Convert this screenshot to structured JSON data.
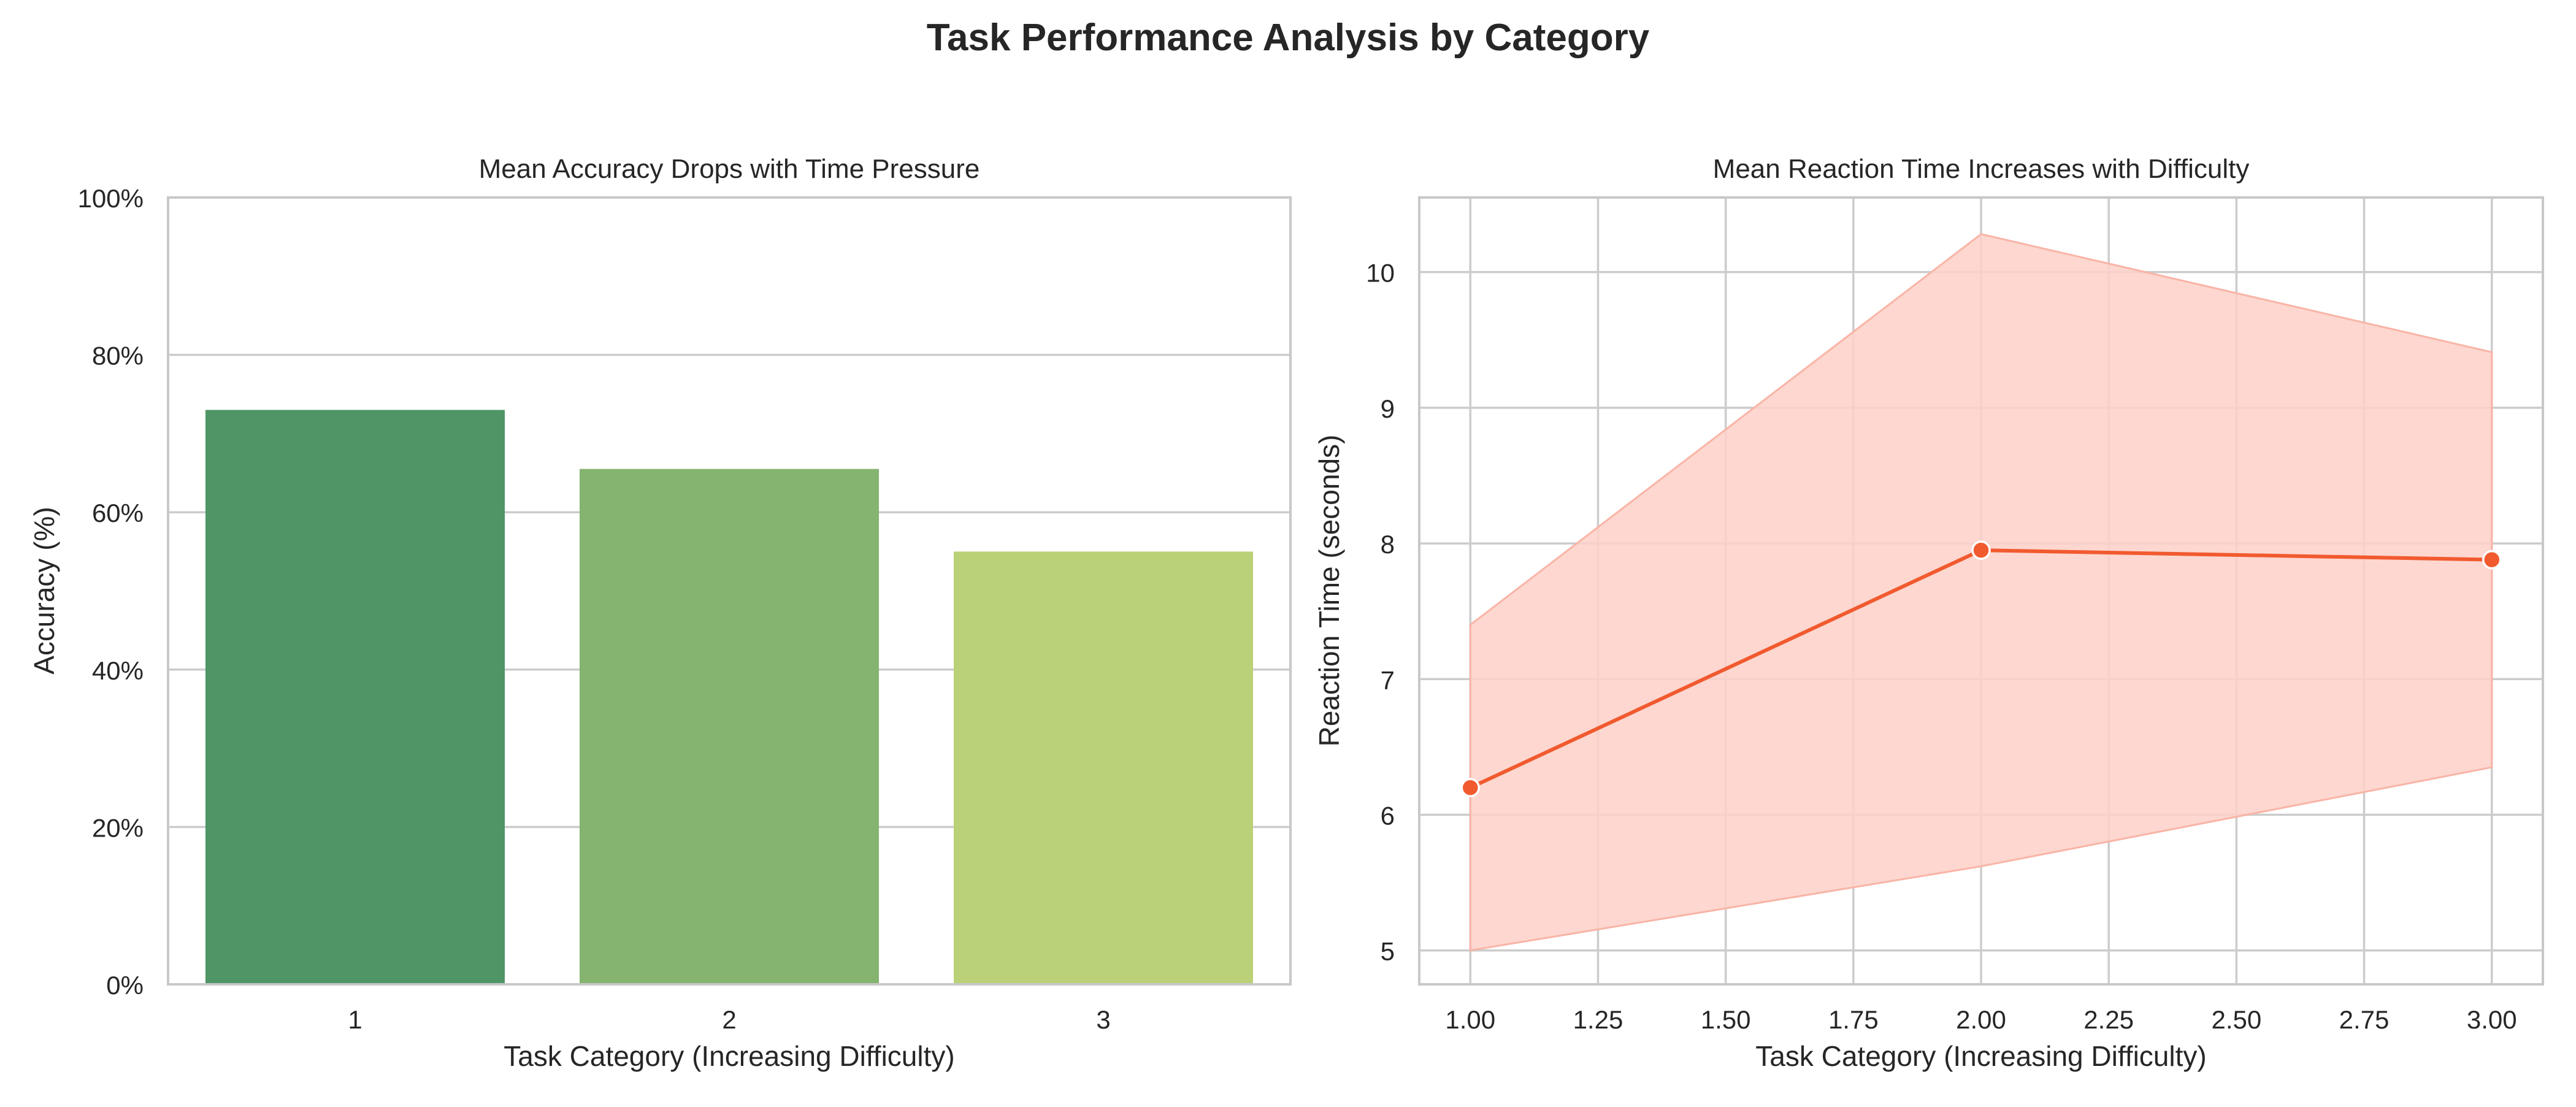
{
  "figure": {
    "title": "Task Performance Analysis by Category"
  },
  "colors": {
    "text": "#262626",
    "grid": "#cccccc",
    "frame": "#c8c8c8",
    "bars": [
      "#4f9566",
      "#84b46f",
      "#bad177"
    ],
    "line": "#f15a2f",
    "band": "#fdd0c8"
  },
  "chart_data": [
    {
      "type": "bar",
      "title": "Mean Accuracy Drops with Time Pressure",
      "xlabel": "Task Category (Increasing Difficulty)",
      "ylabel": "Accuracy (%)",
      "categories": [
        "1",
        "2",
        "3"
      ],
      "values": [
        73,
        65.5,
        55
      ],
      "ylim": [
        0,
        100
      ],
      "yticks": [
        0,
        20,
        40,
        60,
        80,
        100
      ],
      "ytick_labels": [
        "0%",
        "20%",
        "40%",
        "60%",
        "80%",
        "100%"
      ],
      "grid": "horizontal"
    },
    {
      "type": "line",
      "title": "Mean Reaction Time Increases with Difficulty",
      "xlabel": "Task Category (Increasing Difficulty)",
      "ylabel": "Reaction Time (seconds)",
      "x": [
        1.0,
        2.0,
        3.0
      ],
      "y": [
        6.2,
        7.95,
        7.88
      ],
      "band_lower": [
        5.0,
        5.62,
        6.35
      ],
      "band_upper": [
        7.4,
        10.28,
        9.41
      ],
      "xlim": [
        0.9,
        3.1
      ],
      "ylim": [
        4.75,
        10.55
      ],
      "xticks": [
        1.0,
        1.25,
        1.5,
        1.75,
        2.0,
        2.25,
        2.5,
        2.75,
        3.0
      ],
      "xtick_labels": [
        "1.00",
        "1.25",
        "1.50",
        "1.75",
        "2.00",
        "2.25",
        "2.50",
        "2.75",
        "3.00"
      ],
      "yticks": [
        5,
        6,
        7,
        8,
        9,
        10
      ],
      "ytick_labels": [
        "5",
        "6",
        "7",
        "8",
        "9",
        "10"
      ],
      "grid": "both",
      "markers": true
    }
  ]
}
